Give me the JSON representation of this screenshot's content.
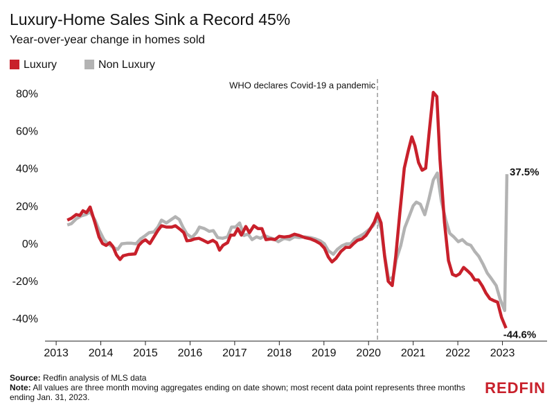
{
  "chart_data": {
    "type": "line",
    "title": "Luxury-Home Sales Sink a Record 45%",
    "subtitle": "Year-over-year change in homes sold",
    "xlim": [
      2012.75,
      2024
    ],
    "xticks": [
      2013,
      2014,
      2015,
      2016,
      2017,
      2018,
      2019,
      2020,
      2021,
      2022,
      2023
    ],
    "ylim": [
      -51.5,
      86
    ],
    "yticks": [
      {
        "value": -40,
        "label": "-40%"
      },
      {
        "value": -20,
        "label": "-20%"
      },
      {
        "value": 0,
        "label": "0%"
      },
      {
        "value": 20,
        "label": "20%"
      },
      {
        "value": 40,
        "label": "40%"
      },
      {
        "value": 60,
        "label": "60%"
      },
      {
        "value": 80,
        "label": "80%"
      }
    ],
    "grid": false,
    "legend": "top-left",
    "annotation": {
      "text": "WHO declares Covid-19 a pandemic",
      "x": 2020.2
    },
    "series": [
      {
        "name": "Luxury",
        "color": "#c8202b",
        "end_label": "-44.6%",
        "x": [
          2013.25,
          2013.34,
          2013.45,
          2013.53,
          2013.6,
          2013.68,
          2013.76,
          2013.87,
          2013.96,
          2014.04,
          2014.12,
          2014.2,
          2014.27,
          2014.35,
          2014.43,
          2014.5,
          2014.62,
          2014.77,
          2014.85,
          2014.93,
          2015.0,
          2015.1,
          2015.19,
          2015.28,
          2015.36,
          2015.47,
          2015.59,
          2015.67,
          2015.78,
          2015.86,
          2015.93,
          2016.01,
          2016.1,
          2016.2,
          2016.3,
          2016.4,
          2016.51,
          2016.59,
          2016.66,
          2016.74,
          2016.84,
          2016.91,
          2016.99,
          2017.07,
          2017.15,
          2017.25,
          2017.33,
          2017.43,
          2017.52,
          2017.61,
          2017.7,
          2017.81,
          2017.9,
          2018.0,
          2018.11,
          2018.23,
          2018.34,
          2018.45,
          2018.57,
          2018.7,
          2018.81,
          2018.92,
          2019.01,
          2019.1,
          2019.18,
          2019.27,
          2019.38,
          2019.49,
          2019.58,
          2019.66,
          2019.75,
          2019.85,
          2019.94,
          2020.03,
          2020.13,
          2020.2,
          2020.28,
          2020.36,
          2020.44,
          2020.53,
          2020.61,
          2020.7,
          2020.8,
          2020.89,
          2020.97,
          2021.04,
          2021.12,
          2021.2,
          2021.28,
          2021.36,
          2021.45,
          2021.53,
          2021.6,
          2021.7,
          2021.79,
          2021.88,
          2021.96,
          2022.04,
          2022.13,
          2022.22,
          2022.3,
          2022.38,
          2022.46,
          2022.55,
          2022.63,
          2022.72,
          2022.81,
          2022.89,
          2022.98,
          2023.08
        ],
        "values": [
          13,
          14,
          16,
          15.5,
          18,
          17,
          20,
          11.5,
          4,
          0.5,
          -0.5,
          1,
          -1,
          -5.5,
          -8,
          -6,
          -5.3,
          -5,
          -0.5,
          1.5,
          2.5,
          0.5,
          4,
          7.5,
          10,
          9.3,
          9.3,
          10,
          8,
          6.3,
          2,
          2.2,
          3,
          3.3,
          2.2,
          1,
          2.2,
          1,
          -3,
          -0.4,
          1,
          5,
          5,
          8.5,
          5,
          9.6,
          6.3,
          10,
          8.5,
          8.5,
          2.6,
          3,
          2.6,
          4.4,
          4,
          4.4,
          5.5,
          4.8,
          3.7,
          3,
          1.9,
          0.4,
          -1.9,
          -6.7,
          -9.3,
          -7.4,
          -3.7,
          -1.5,
          -1.5,
          0.4,
          2.2,
          3,
          4.8,
          8,
          12,
          16.5,
          11.5,
          -6.3,
          -19.6,
          -21.9,
          -6.3,
          16.5,
          40.7,
          50,
          57.4,
          52.6,
          43.7,
          39.6,
          40.7,
          60.4,
          81.1,
          78.9,
          45.6,
          11.9,
          -8.5,
          -15.9,
          -16.7,
          -15.6,
          -12.2,
          -14.1,
          -15.9,
          -18.9,
          -18.9,
          -22.2,
          -25.9,
          -28.9,
          -30,
          -30.7,
          -38.9,
          -44.6
        ]
      },
      {
        "name": "Non Luxury",
        "color": "#b3b3b3",
        "end_label": "37.5%",
        "x": [
          2013.25,
          2013.34,
          2013.45,
          2013.56,
          2013.67,
          2013.76,
          2013.87,
          2013.96,
          2014.07,
          2014.16,
          2014.27,
          2014.38,
          2014.47,
          2014.58,
          2014.69,
          2014.79,
          2014.89,
          2015.0,
          2015.08,
          2015.19,
          2015.28,
          2015.36,
          2015.47,
          2015.56,
          2015.67,
          2015.76,
          2015.84,
          2015.93,
          2016.04,
          2016.14,
          2016.21,
          2016.32,
          2016.43,
          2016.52,
          2016.62,
          2016.73,
          2016.84,
          2016.93,
          2017.02,
          2017.11,
          2017.21,
          2017.3,
          2017.39,
          2017.49,
          2017.58,
          2017.67,
          2017.78,
          2017.88,
          2017.98,
          2018.11,
          2018.23,
          2018.34,
          2018.45,
          2018.57,
          2018.7,
          2018.81,
          2018.92,
          2019.01,
          2019.1,
          2019.21,
          2019.3,
          2019.4,
          2019.51,
          2019.6,
          2019.69,
          2019.8,
          2019.89,
          2020.0,
          2020.1,
          2020.2,
          2020.28,
          2020.36,
          2020.45,
          2020.55,
          2020.62,
          2020.72,
          2020.81,
          2020.9,
          2021.0,
          2021.07,
          2021.16,
          2021.26,
          2021.35,
          2021.45,
          2021.54,
          2021.63,
          2021.73,
          2021.82,
          2021.91,
          2022.01,
          2022.1,
          2022.2,
          2022.29,
          2022.38,
          2022.47,
          2022.57,
          2022.66,
          2022.75,
          2022.86,
          2022.95,
          2023.05,
          2023.1
        ],
        "values": [
          10.4,
          11.1,
          13.7,
          15.2,
          16,
          17.4,
          13,
          7.8,
          2.6,
          0.4,
          -1.5,
          -2.6,
          0.4,
          0.7,
          0.7,
          0.4,
          3,
          4.8,
          6.3,
          6.7,
          9.3,
          13,
          11.5,
          13,
          14.8,
          13.3,
          9.3,
          5.6,
          3.7,
          6.3,
          9.3,
          8.5,
          7,
          7.4,
          3.7,
          3.3,
          4.1,
          9.3,
          9.3,
          11.5,
          4.8,
          5.6,
          2.6,
          4.1,
          3.3,
          4.8,
          3.7,
          3,
          1.5,
          3.3,
          2.6,
          4.1,
          3.7,
          4.1,
          3.7,
          3,
          1.9,
          0.4,
          -3.3,
          -5.2,
          -2.6,
          -0.7,
          0.4,
          0.4,
          3,
          4.4,
          5.6,
          7.8,
          10,
          13.7,
          8.5,
          -5.6,
          -18.5,
          -17.4,
          -8.1,
          -0.7,
          8.9,
          14.4,
          20.7,
          22.6,
          21.5,
          15.9,
          24,
          34.4,
          38.1,
          23.3,
          13,
          5.9,
          4.1,
          1.5,
          2.6,
          0.4,
          -0.4,
          -3.7,
          -6.3,
          -10.7,
          -15.2,
          -18.1,
          -21.9,
          -29.3,
          -35.2,
          37.5
        ]
      }
    ]
  },
  "footer": {
    "source_label": "Source:",
    "source": "Redfin analysis of MLS data",
    "note_label": "Note:",
    "note": "All values are three month moving aggregates ending on date shown; most recent data point represents three months ending Jan. 31, 2023.",
    "logo": "REDFIN"
  }
}
